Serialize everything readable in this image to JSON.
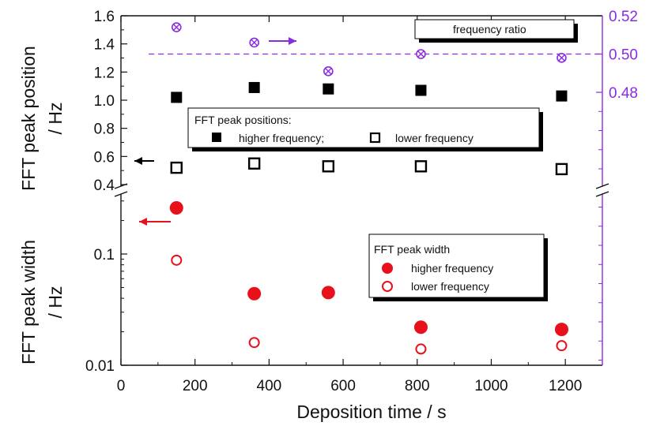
{
  "chart_data": {
    "type": "scatter",
    "xlabel": "Deposition time / s",
    "xlim": [
      0,
      1300
    ],
    "xticks": [
      "0",
      "200",
      "400",
      "600",
      "800",
      "1000",
      "1200"
    ],
    "panels": [
      {
        "id": "positions",
        "ylabel_lines": [
          "FFT peak position",
          "/ Hz"
        ],
        "ylim": [
          0.4,
          1.6
        ],
        "yticks": [
          "0.4",
          "0.6",
          "0.8",
          "1.0",
          "1.2",
          "1.4",
          "1.6"
        ],
        "series": [
          {
            "key": "higher",
            "marker": "square-filled",
            "color": "#000000",
            "x": [
              150,
              360,
              560,
              810,
              1190
            ],
            "y": [
              1.02,
              1.09,
              1.08,
              1.07,
              1.03
            ]
          },
          {
            "key": "lower",
            "marker": "square-open",
            "color": "#000000",
            "x": [
              150,
              360,
              560,
              810,
              1190
            ],
            "y": [
              0.52,
              0.55,
              0.53,
              0.53,
              0.51
            ]
          }
        ],
        "legend": {
          "title": "FFT peak positions:",
          "entries": [
            "higher frequency;",
            "lower frequency"
          ]
        }
      },
      {
        "id": "widths",
        "ylabel_lines": [
          "FFT peak width",
          "/ Hz"
        ],
        "yscale": "log",
        "ylim": [
          0.01,
          0.45
        ],
        "yticks": [
          "0.01",
          "0.1"
        ],
        "series": [
          {
            "key": "higher",
            "marker": "circle-filled",
            "color": "#e8101a",
            "x": [
              150,
              360,
              560,
              810,
              1190
            ],
            "y": [
              0.26,
              0.044,
              0.045,
              0.022,
              0.021
            ]
          },
          {
            "key": "lower",
            "marker": "circle-open",
            "color": "#e8101a",
            "x": [
              150,
              360,
              560,
              810,
              1190
            ],
            "y": [
              0.088,
              0.016,
              null,
              0.014,
              0.015
            ]
          }
        ],
        "legend": {
          "title": "FFT peak width",
          "entries": [
            "higher frequency",
            "lower frequency"
          ]
        }
      }
    ],
    "right_axis": {
      "ylim": [
        0.47,
        0.52
      ],
      "yticks": [
        "0.48",
        "0.50",
        "0.52"
      ],
      "color": "#8a2be2",
      "series": {
        "name": "frequency ratio",
        "marker": "circle-x",
        "x": [
          150,
          360,
          560,
          810,
          1190
        ],
        "y": [
          0.514,
          0.506,
          0.491,
          0.5,
          0.498
        ]
      },
      "reference_line": 0.5
    }
  }
}
